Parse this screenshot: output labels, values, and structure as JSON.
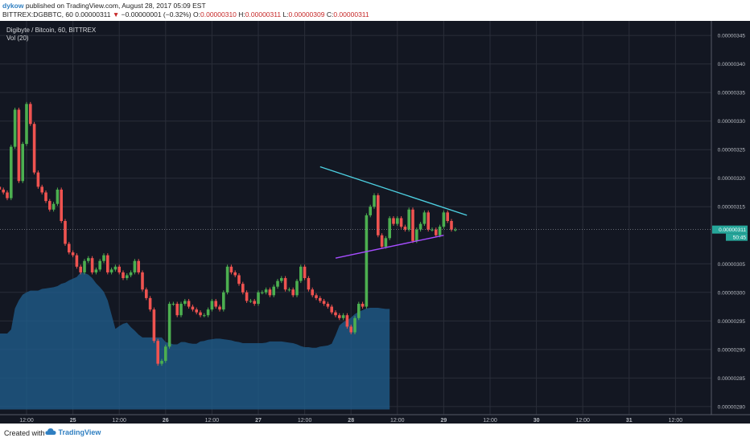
{
  "header": {
    "author": "dykow",
    "published_text": "published on TradingView.com, August 28, 2017 05:09 EST",
    "symbol_line": "BITTREX:DGBBTC, 60  0.00000311",
    "change_arrow": "▼",
    "change_text": "−0.00000001 (−0.32%)",
    "ohlc_o_label": "O:",
    "ohlc_o": "0.00000310",
    "ohlc_h_label": "H:",
    "ohlc_h": "0.00000311",
    "ohlc_l_label": "L:",
    "ohlc_l": "0.00000309",
    "ohlc_c_label": "C:",
    "ohlc_c": "0.00000311"
  },
  "footer": {
    "created_with": "Created with",
    "brand": "TradingView",
    "brand_icon": "cloud-logo-icon"
  },
  "colors": {
    "background": "#131722",
    "grid": "#2a2e39",
    "up": "#4caf50",
    "down": "#ef5350",
    "volume_area": "#1f5b8a",
    "trend_upper": "#4dd0e1",
    "trend_lower": "#a64dff",
    "price_badge": "#26a69a"
  },
  "chart_data": {
    "type": "candlestick",
    "title": "Digibyte / Bitcoin, 60, BITTREX",
    "indicator_label": "Vol (20)",
    "x_ticks": [
      "12:00",
      "25",
      "12:00",
      "26",
      "12:00",
      "27",
      "12:00",
      "28",
      "12:00",
      "29",
      "12:00",
      "30",
      "12:00",
      "31",
      "12:00"
    ],
    "x_ticks_bold": [
      "25",
      "26",
      "27",
      "28",
      "29",
      "30",
      "31"
    ],
    "y_ticks": [
      "0.00000345",
      "0.00000340",
      "0.00000335",
      "0.00000330",
      "0.00000325",
      "0.00000320",
      "0.00000315",
      "0.00000305",
      "0.00000300",
      "0.00000295",
      "0.00000290",
      "0.00000285",
      "0.00000280"
    ],
    "ylim": [
      2.79e-06,
      3.46e-06
    ],
    "last_price": "0.00000311",
    "countdown": "50:45",
    "candles_close": [
      3.195e-06,
      3.185e-06,
      3.18e-06,
      3.175e-06,
      3.165e-06,
      3.255e-06,
      3.32e-06,
      3.195e-06,
      3.26e-06,
      3.33e-06,
      3.295e-06,
      3.21e-06,
      3.185e-06,
      3.175e-06,
      3.16e-06,
      3.145e-06,
      3.155e-06,
      3.18e-06,
      3.125e-06,
      3.085e-06,
      3.07e-06,
      3.065e-06,
      3.045e-06,
      3.035e-06,
      3.055e-06,
      3.06e-06,
      3.035e-06,
      3.04e-06,
      3.055e-06,
      3.065e-06,
      3.035e-06,
      3.04e-06,
      3.045e-06,
      3.035e-06,
      3.025e-06,
      3.03e-06,
      3.035e-06,
      3.055e-06,
      3.035e-06,
      3.005e-06,
      2.99e-06,
      2.97e-06,
      2.915e-06,
      2.875e-06,
      2.88e-06,
      2.905e-06,
      2.98e-06,
      2.98e-06,
      2.96e-06,
      2.98e-06,
      2.985e-06,
      2.975e-06,
      2.97e-06,
      2.965e-06,
      2.96e-06,
      2.96e-06,
      2.97e-06,
      2.985e-06,
      2.975e-06,
      2.97e-06,
      3e-06,
      3.045e-06,
      3.035e-06,
      3.03e-06,
      3.015e-06,
      3e-06,
      2.985e-06,
      2.985e-06,
      2.98e-06,
      3e-06,
      3e-06,
      3.005e-06,
      2.995e-06,
      3.01e-06,
      3.02e-06,
      3.025e-06,
      3.005e-06,
      3.005e-06,
      2.995e-06,
      3.02e-06,
      3.045e-06,
      3.025e-06,
      3.005e-06,
      2.995e-06,
      2.99e-06,
      2.985e-06,
      2.98e-06,
      2.975e-06,
      2.965e-06,
      2.96e-06,
      2.955e-06,
      2.96e-06,
      2.94e-06,
      2.93e-06,
      2.955e-06,
      2.98e-06,
      2.975e-06,
      3.135e-06,
      3.15e-06,
      3.17e-06,
      3.1e-06,
      3.08e-06,
      3.095e-06,
      3.13e-06,
      3.12e-06,
      3.13e-06,
      3.115e-06,
      3.11e-06,
      3.145e-06,
      3.09e-06,
      3.11e-06,
      3.12e-06,
      3.14e-06,
      3.11e-06,
      3.11e-06,
      3.1e-06,
      3.115e-06,
      3.14e-06,
      3.125e-06,
      3.11e-06,
      3.11e-06
    ],
    "volume_ma": [
      2.931e-06,
      2.931e-06,
      2.928e-06,
      2.928e-06,
      2.928e-06,
      2.935e-06,
      2.972e-06,
      2.986e-06,
      2.996e-06,
      3e-06,
      3.003e-06,
      3.003e-06,
      3.003e-06,
      3.006e-06,
      3.007e-06,
      3.008e-06,
      3.009e-06,
      3.011e-06,
      3.015e-06,
      3.017e-06,
      3.021e-06,
      3.024e-06,
      3.027e-06,
      3.035e-06,
      3.034e-06,
      3.031e-06,
      3.025e-06,
      3.016e-06,
      3.009e-06,
      3.001e-06,
      2.986e-06,
      2.961e-06,
      2.936e-06,
      2.941e-06,
      2.945e-06,
      2.947e-06,
      2.939e-06,
      2.933e-06,
      2.926e-06,
      2.921e-06,
      2.921e-06,
      2.921e-06,
      2.921e-06,
      2.921e-06,
      2.921e-06,
      2.913e-06,
      2.911e-06,
      2.909e-06,
      2.909e-06,
      2.913e-06,
      2.913e-06,
      2.911e-06,
      2.91e-06,
      2.91e-06,
      2.914e-06,
      2.915e-06,
      2.917e-06,
      2.918e-06,
      2.919e-06,
      2.919e-06,
      2.918e-06,
      2.917e-06,
      2.916e-06,
      2.914e-06,
      2.913e-06,
      2.911e-06,
      2.911e-06,
      2.911e-06,
      2.911e-06,
      2.911e-06,
      2.911e-06,
      2.912e-06,
      2.914e-06,
      2.914e-06,
      2.914e-06,
      2.914e-06,
      2.913e-06,
      2.912e-06,
      2.911e-06,
      2.909e-06,
      2.906e-06,
      2.904e-06,
      2.904e-06,
      2.903e-06,
      2.903e-06,
      2.905e-06,
      2.906e-06,
      2.907e-06,
      2.91e-06,
      2.925e-06,
      2.942e-06,
      2.948e-06,
      2.951e-06,
      2.956e-06,
      2.962e-06,
      2.966e-06,
      2.969e-06,
      2.972e-06,
      2.973e-06,
      2.973e-06,
      2.973e-06,
      2.972e-06,
      2.971e-06,
      2.971e-06
    ],
    "trendlines": [
      {
        "name": "upper",
        "from": {
          "x": "27 16:00",
          "y": 3.22e-06
        },
        "to": {
          "x": "29 06:00",
          "y": 3.135e-06
        }
      },
      {
        "name": "lower",
        "from": {
          "x": "27 20:00",
          "y": 3.06e-06
        },
        "to": {
          "x": "29 00:00",
          "y": 3.1e-06
        }
      }
    ],
    "grid": true
  }
}
